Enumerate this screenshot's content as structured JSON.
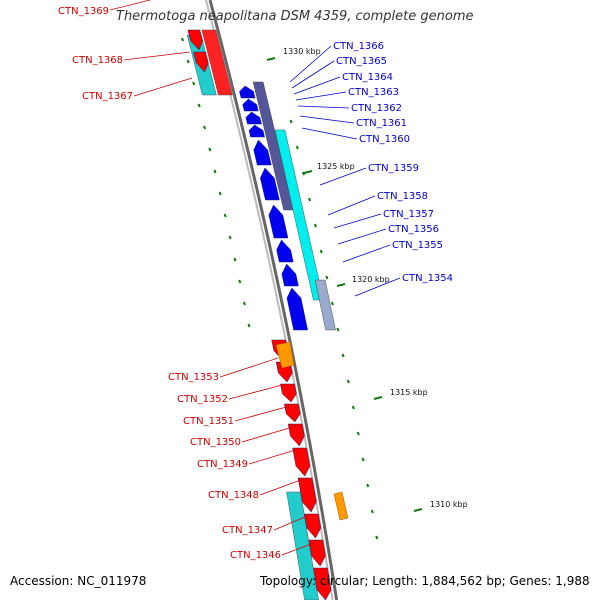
{
  "title": "Thermotoga neapolitana DSM 4359, complete genome",
  "accession": "Accession: NC_011978",
  "topology": "Topology: circular; Length: 1,884,562 bp; Genes: 1,988",
  "colors": {
    "forward_gene": "#ff0000",
    "reverse_gene": "#0000ee",
    "forward_label": "#cc0000",
    "reverse_label": "#0000cc",
    "cyan_track": "#22cccc",
    "purple_track": "#555599",
    "orange_gene": "#ff9900",
    "backbone": "#888888",
    "tick": "#117711"
  },
  "kbp_ticks": [
    {
      "label": "1330 kbp"
    },
    {
      "label": "1325 kbp"
    },
    {
      "label": "1320 kbp"
    },
    {
      "label": "1315 kbp"
    },
    {
      "label": "1310 kbp"
    }
  ],
  "reverse_genes": [
    {
      "label": "CTN_1366"
    },
    {
      "label": "CTN_1365"
    },
    {
      "label": "CTN_1364"
    },
    {
      "label": "CTN_1363"
    },
    {
      "label": "CTN_1362"
    },
    {
      "label": "CTN_1361"
    },
    {
      "label": "CTN_1360"
    },
    {
      "label": "CTN_1359"
    },
    {
      "label": "CTN_1358"
    },
    {
      "label": "CTN_1357"
    },
    {
      "label": "CTN_1356"
    },
    {
      "label": "CTN_1355"
    },
    {
      "label": "CTN_1354"
    }
  ],
  "forward_genes": [
    {
      "label": "CTN_1369"
    },
    {
      "label": "CTN_1368"
    },
    {
      "label": "CTN_1367"
    },
    {
      "label": "CTN_1353"
    },
    {
      "label": "CTN_1352"
    },
    {
      "label": "CTN_1351"
    },
    {
      "label": "CTN_1350"
    },
    {
      "label": "CTN_1349"
    },
    {
      "label": "CTN_1348"
    },
    {
      "label": "CTN_1347"
    },
    {
      "label": "CTN_1346"
    }
  ]
}
